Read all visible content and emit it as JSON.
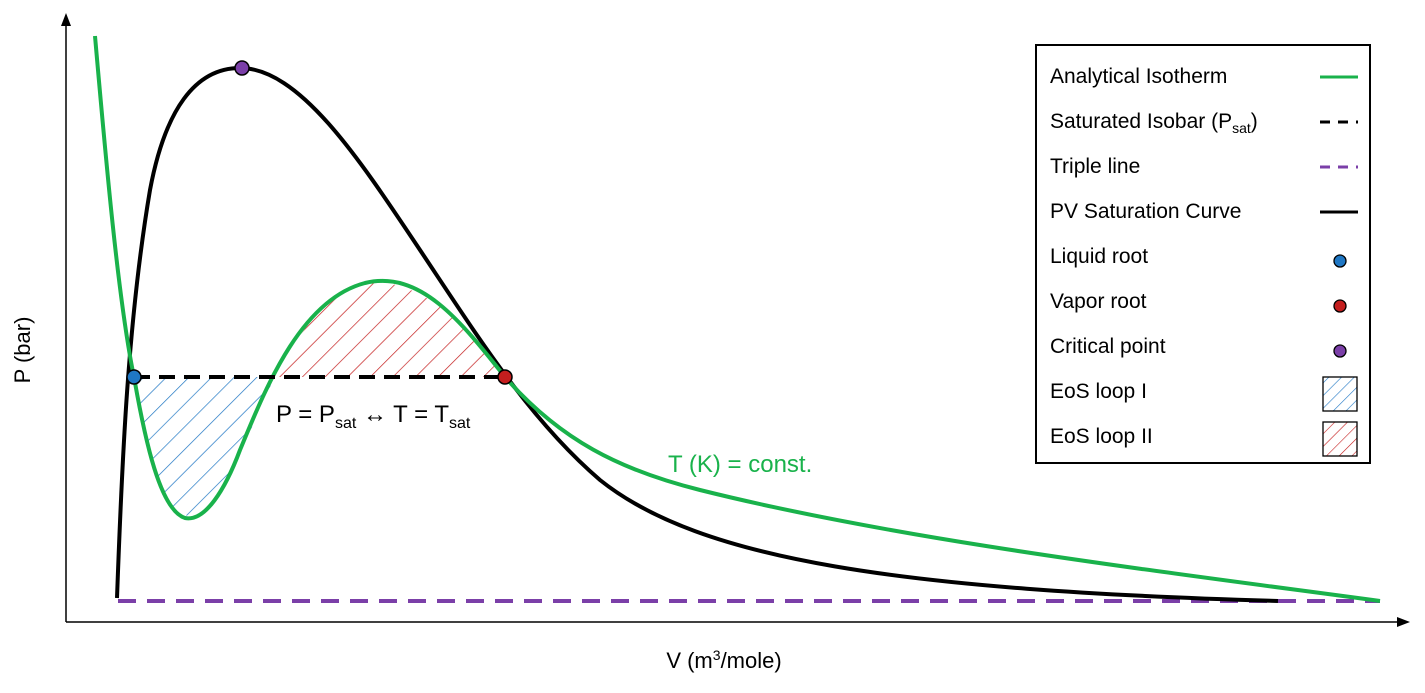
{
  "axes": {
    "x_label": "V (m³/mole)",
    "y_label": "P (bar)"
  },
  "annotations": {
    "equilibrium_condition": {
      "p": "P",
      "eq1": " = P",
      "sub1": "sat",
      "mid": " ↔ T = T",
      "sub2": "sat"
    },
    "isotherm_label": "T (K) = const."
  },
  "legend": {
    "items": [
      {
        "key": "analytical-isotherm",
        "label": "Analytical Isotherm",
        "symbol": "line",
        "color": "#19b24b"
      },
      {
        "key": "saturated-isobar",
        "label": "Saturated Isobar (P",
        "sub": "sat",
        "after": ")",
        "symbol": "dash",
        "color": "#000000"
      },
      {
        "key": "triple-line",
        "label": "Triple line",
        "symbol": "dash",
        "color": "#7b3fa8"
      },
      {
        "key": "pv-saturation-curve",
        "label": "PV Saturation Curve",
        "symbol": "line",
        "color": "#000000"
      },
      {
        "key": "liquid-root",
        "label": "Liquid root",
        "symbol": "dot",
        "color": "#1f77c4"
      },
      {
        "key": "vapor-root",
        "label": "Vapor root",
        "symbol": "dot",
        "color": "#c41e1e"
      },
      {
        "key": "critical-point",
        "label": "Critical point",
        "symbol": "dot",
        "color": "#7b3fa8"
      },
      {
        "key": "eos-loop-1",
        "label": "EoS loop I",
        "symbol": "hatch",
        "color": "#1f77c4"
      },
      {
        "key": "eos-loop-2",
        "label": "EoS loop II",
        "symbol": "hatch",
        "color": "#c41e1e"
      }
    ]
  },
  "colors": {
    "isotherm": "#19b24b",
    "saturation": "#000000",
    "triple": "#7b3fa8",
    "liquid": "#1f77c4",
    "vapor": "#c41e1e",
    "critical": "#7b3fa8"
  }
}
